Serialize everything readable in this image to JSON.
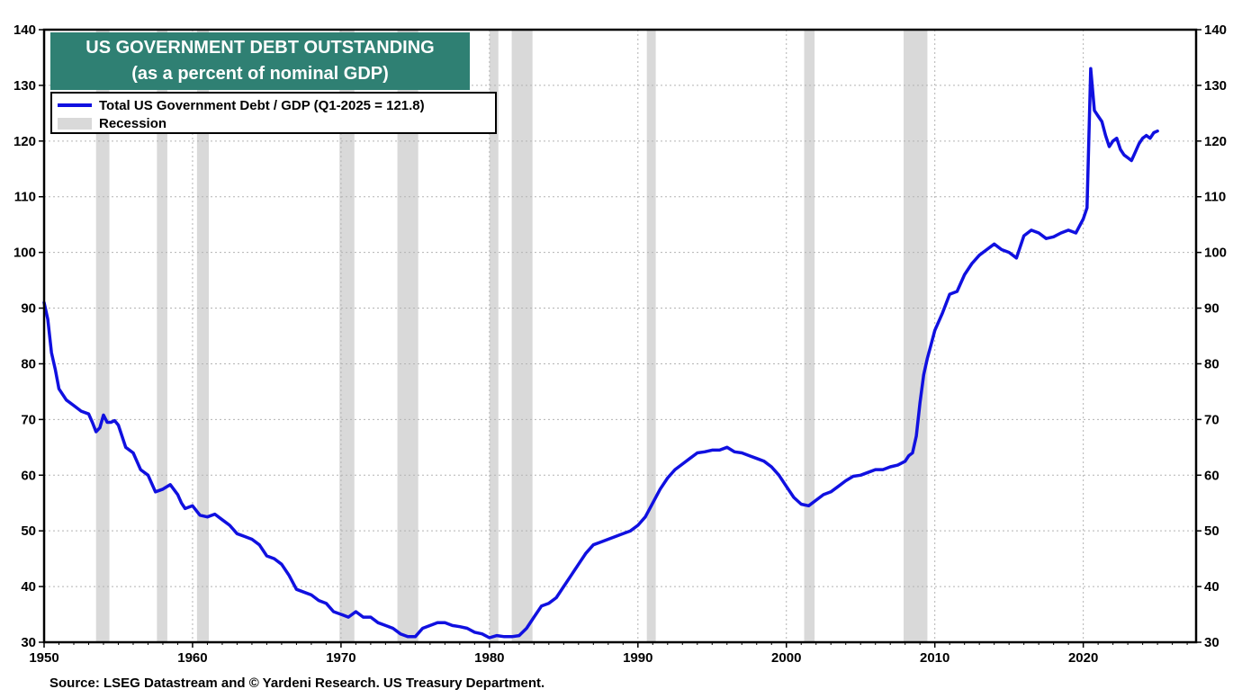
{
  "chart_data": {
    "type": "line",
    "title": "US GOVERNMENT DEBT OUTSTANDING",
    "subtitle": "(as a percent of nominal GDP)",
    "source": "Source: LSEG Datastream and © Yardeni Research. US Treasury Department.",
    "xlim": [
      1950,
      2027.6
    ],
    "ylim": [
      30,
      140
    ],
    "x_ticks": [
      "1950",
      "1960",
      "1970",
      "1980",
      "1990",
      "2000",
      "2010",
      "2020"
    ],
    "y_ticks": [
      "30",
      "40",
      "50",
      "60",
      "70",
      "80",
      "90",
      "100",
      "110",
      "120",
      "130",
      "140"
    ],
    "grid": true,
    "legend_placement": "top-left",
    "series": [
      {
        "name": "Total US Government Debt / GDP (Q1-2025 = 121.8)",
        "color": "#1010e0",
        "x": [
          1950.0,
          1950.25,
          1950.5,
          1950.75,
          1951.0,
          1951.5,
          1952.0,
          1952.5,
          1953.0,
          1953.25,
          1953.5,
          1953.75,
          1954.0,
          1954.25,
          1954.5,
          1954.75,
          1955.0,
          1955.5,
          1956.0,
          1956.5,
          1957.0,
          1957.25,
          1957.5,
          1958.0,
          1958.5,
          1959.0,
          1959.25,
          1959.5,
          1960.0,
          1960.5,
          1961.0,
          1961.5,
          1962.0,
          1962.5,
          1963.0,
          1963.5,
          1964.0,
          1964.5,
          1965.0,
          1965.5,
          1966.0,
          1966.5,
          1967.0,
          1967.5,
          1968.0,
          1968.5,
          1969.0,
          1969.5,
          1970.0,
          1970.5,
          1971.0,
          1971.5,
          1972.0,
          1972.5,
          1973.0,
          1973.5,
          1974.0,
          1974.5,
          1975.0,
          1975.5,
          1976.0,
          1976.5,
          1977.0,
          1977.5,
          1978.0,
          1978.5,
          1979.0,
          1979.5,
          1980.0,
          1980.5,
          1981.0,
          1981.5,
          1982.0,
          1982.5,
          1983.0,
          1983.5,
          1984.0,
          1984.5,
          1985.0,
          1985.5,
          1986.0,
          1986.5,
          1987.0,
          1987.5,
          1988.0,
          1988.5,
          1989.0,
          1989.5,
          1990.0,
          1990.5,
          1991.0,
          1991.5,
          1992.0,
          1992.5,
          1993.0,
          1993.5,
          1994.0,
          1994.5,
          1995.0,
          1995.5,
          1996.0,
          1996.5,
          1997.0,
          1997.5,
          1998.0,
          1998.5,
          1999.0,
          1999.5,
          2000.0,
          2000.5,
          2001.0,
          2001.5,
          2002.0,
          2002.5,
          2003.0,
          2003.5,
          2004.0,
          2004.5,
          2005.0,
          2005.5,
          2006.0,
          2006.5,
          2007.0,
          2007.5,
          2008.0,
          2008.25,
          2008.5,
          2008.75,
          2009.0,
          2009.25,
          2009.5,
          2009.75,
          2010.0,
          2010.5,
          2011.0,
          2011.5,
          2012.0,
          2012.5,
          2013.0,
          2013.5,
          2014.0,
          2014.5,
          2015.0,
          2015.5,
          2016.0,
          2016.5,
          2017.0,
          2017.5,
          2018.0,
          2018.5,
          2019.0,
          2019.5,
          2020.0,
          2020.25,
          2020.5,
          2020.75,
          2021.0,
          2021.25,
          2021.5,
          2021.75,
          2022.0,
          2022.25,
          2022.5,
          2022.75,
          2023.0,
          2023.25,
          2023.5,
          2023.75,
          2024.0,
          2024.25,
          2024.5,
          2024.75,
          2025.0
        ],
        "y": [
          91.0,
          88.0,
          82.0,
          79.0,
          75.5,
          73.5,
          72.5,
          71.5,
          71.0,
          69.5,
          67.8,
          68.5,
          70.8,
          69.5,
          69.5,
          69.8,
          69.0,
          65.0,
          64.0,
          61.0,
          60.0,
          58.5,
          57.0,
          57.5,
          58.3,
          56.5,
          55.0,
          54.0,
          54.5,
          52.8,
          52.5,
          53.0,
          52.0,
          51.0,
          49.5,
          49.0,
          48.5,
          47.5,
          45.5,
          45.0,
          44.0,
          42.0,
          39.5,
          39.0,
          38.5,
          37.5,
          37.0,
          35.5,
          35.0,
          34.5,
          35.5,
          34.5,
          34.5,
          33.5,
          33.0,
          32.5,
          31.5,
          31.0,
          31.0,
          32.5,
          33.0,
          33.5,
          33.5,
          33.0,
          32.8,
          32.5,
          31.8,
          31.5,
          30.8,
          31.2,
          31.0,
          31.0,
          31.2,
          32.5,
          34.5,
          36.5,
          37.0,
          38.0,
          40.0,
          42.0,
          44.0,
          46.0,
          47.5,
          48.0,
          48.5,
          49.0,
          49.5,
          50.0,
          51.0,
          52.5,
          55.0,
          57.5,
          59.5,
          61.0,
          62.0,
          63.0,
          64.0,
          64.2,
          64.5,
          64.5,
          65.0,
          64.2,
          64.0,
          63.5,
          63.0,
          62.5,
          61.5,
          60.0,
          58.0,
          56.0,
          54.8,
          54.5,
          55.5,
          56.5,
          57.0,
          58.0,
          59.0,
          59.8,
          60.0,
          60.5,
          61.0,
          61.0,
          61.5,
          61.8,
          62.5,
          63.5,
          64.0,
          67.0,
          73.0,
          78.0,
          81.0,
          83.5,
          86.0,
          89.0,
          92.5,
          93.0,
          96.0,
          98.0,
          99.5,
          100.5,
          101.5,
          100.5,
          100.0,
          99.0,
          103.0,
          104.0,
          103.5,
          102.5,
          102.8,
          103.5,
          104.0,
          103.5,
          106.0,
          108.0,
          133.0,
          125.5,
          124.5,
          123.5,
          121.0,
          119.0,
          120.0,
          120.5,
          118.5,
          117.5,
          117.0,
          116.5,
          118.0,
          119.5,
          120.5,
          121.0,
          120.5,
          121.5,
          121.8
        ]
      }
    ],
    "shading": {
      "name": "Recession",
      "color": "#d9d9d9",
      "periods": [
        [
          1953.5,
          1954.4
        ],
        [
          1957.6,
          1958.3
        ],
        [
          1960.3,
          1961.1
        ],
        [
          1969.9,
          1970.9
        ],
        [
          1973.8,
          1975.2
        ],
        [
          1980.0,
          1980.6
        ],
        [
          1981.5,
          1982.9
        ],
        [
          1990.6,
          1991.2
        ],
        [
          2001.2,
          2001.9
        ],
        [
          2007.9,
          2009.5
        ]
      ]
    }
  }
}
